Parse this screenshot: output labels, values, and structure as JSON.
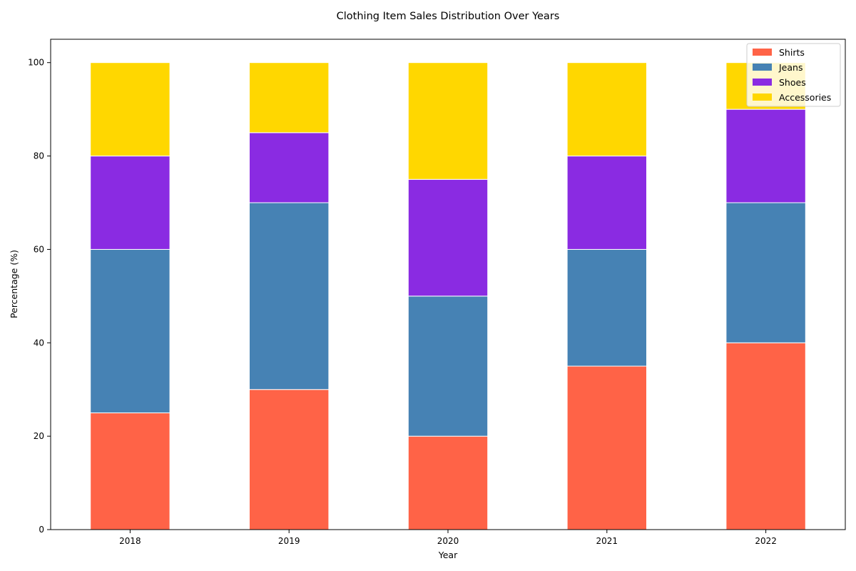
{
  "chart_data": {
    "type": "bar",
    "stacked": true,
    "title": "Clothing Item Sales Distribution Over Years",
    "xlabel": "Year",
    "ylabel": "Percentage (%)",
    "categories": [
      "2018",
      "2019",
      "2020",
      "2021",
      "2022"
    ],
    "series": [
      {
        "name": "Shirts",
        "color": "#FF6347",
        "values": [
          25,
          30,
          20,
          35,
          40
        ]
      },
      {
        "name": "Jeans",
        "color": "#4682B4",
        "values": [
          35,
          40,
          30,
          25,
          30
        ]
      },
      {
        "name": "Shoes",
        "color": "#8A2BE2",
        "values": [
          20,
          15,
          25,
          20,
          20
        ]
      },
      {
        "name": "Accessories",
        "color": "#FFD700",
        "values": [
          20,
          15,
          25,
          20,
          10
        ]
      }
    ],
    "ylim": [
      0,
      105
    ],
    "yticks": [
      0,
      20,
      40,
      60,
      80,
      100
    ],
    "grid": false,
    "legend_position": "top-right"
  }
}
